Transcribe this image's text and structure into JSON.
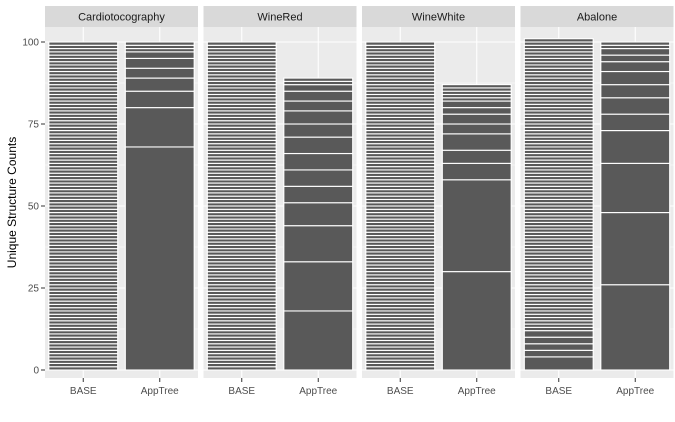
{
  "chart_data": {
    "type": "bar",
    "subtype": "stacked-facet",
    "title": "",
    "xlabel": "",
    "ylabel": "Unique Structure Counts",
    "ylim": [
      0,
      100
    ],
    "yticks": [
      0,
      25,
      50,
      75,
      100
    ],
    "categories": [
      "BASE",
      "AppTree"
    ],
    "colors": {
      "bar": "#595959",
      "separator": "#ffffff",
      "panel": "#ebebeb",
      "grid": "#ffffff",
      "strip": "#d9d9d9"
    },
    "facets": [
      {
        "name": "Cardiotocography",
        "bars": [
          {
            "category": "BASE",
            "segments": [
              1,
              1,
              1,
              1,
              1,
              1,
              1,
              1,
              1,
              1,
              1,
              1,
              1,
              1,
              1,
              1,
              1,
              1,
              1,
              1,
              1,
              1,
              1,
              1,
              1,
              1,
              1,
              1,
              1,
              1,
              1,
              1,
              1,
              1,
              1,
              1,
              1,
              1,
              1,
              1,
              1,
              1,
              1,
              1,
              1,
              1,
              1,
              1,
              1,
              1,
              1,
              1,
              1,
              1,
              1,
              1,
              1,
              1,
              1,
              1,
              1,
              1,
              1,
              1,
              1,
              1,
              1,
              1,
              1,
              1,
              1,
              1,
              1,
              1,
              1,
              1,
              1,
              1,
              1,
              1,
              1,
              1,
              1,
              1,
              1,
              1,
              1,
              1,
              1,
              1,
              1,
              1,
              1,
              1,
              1,
              1,
              1,
              1,
              1,
              1
            ]
          },
          {
            "category": "AppTree",
            "segments": [
              68,
              12,
              5,
              4,
              3,
              3,
              2,
              1,
              1,
              1
            ]
          }
        ]
      },
      {
        "name": "WineRed",
        "bars": [
          {
            "category": "BASE",
            "segments": [
              1,
              1,
              1,
              1,
              1,
              1,
              1,
              1,
              1,
              1,
              1,
              1,
              1,
              1,
              1,
              1,
              1,
              1,
              1,
              1,
              1,
              1,
              1,
              1,
              1,
              1,
              1,
              1,
              1,
              1,
              1,
              1,
              1,
              1,
              1,
              1,
              1,
              1,
              1,
              1,
              1,
              1,
              1,
              1,
              1,
              1,
              1,
              1,
              1,
              1,
              1,
              1,
              1,
              1,
              1,
              1,
              1,
              1,
              1,
              1,
              1,
              1,
              1,
              1,
              1,
              1,
              1,
              1,
              1,
              1,
              1,
              1,
              1,
              1,
              1,
              1,
              1,
              1,
              1,
              1,
              1,
              1,
              1,
              1,
              1,
              1,
              1,
              1,
              1,
              1,
              1,
              1,
              1,
              1,
              1,
              1,
              1,
              1,
              1,
              1
            ]
          },
          {
            "category": "AppTree",
            "segments": [
              18,
              15,
              11,
              7,
              5,
              5,
              5,
              5,
              4,
              4,
              3,
              3,
              2,
              1,
              1
            ]
          }
        ]
      },
      {
        "name": "WineWhite",
        "bars": [
          {
            "category": "BASE",
            "segments": [
              1,
              1,
              1,
              1,
              1,
              1,
              1,
              1,
              1,
              1,
              1,
              1,
              1,
              1,
              1,
              1,
              1,
              1,
              1,
              1,
              1,
              1,
              1,
              1,
              1,
              1,
              1,
              1,
              1,
              1,
              1,
              1,
              1,
              1,
              1,
              1,
              1,
              1,
              1,
              1,
              1,
              1,
              1,
              1,
              1,
              1,
              1,
              1,
              1,
              1,
              1,
              1,
              1,
              1,
              1,
              1,
              1,
              1,
              1,
              1,
              1,
              1,
              1,
              1,
              1,
              1,
              1,
              1,
              1,
              1,
              1,
              1,
              1,
              1,
              1,
              1,
              1,
              1,
              1,
              1,
              1,
              1,
              1,
              1,
              1,
              1,
              1,
              1,
              1,
              1,
              1,
              1,
              1,
              1,
              1,
              1,
              1,
              1,
              1,
              1
            ]
          },
          {
            "category": "AppTree",
            "segments": [
              30,
              28,
              5,
              4,
              5,
              3,
              3,
              2,
              2,
              1,
              1,
              1,
              1,
              1
            ]
          }
        ]
      },
      {
        "name": "Abalone",
        "bars": [
          {
            "category": "BASE",
            "segments": [
              4,
              2,
              2,
              2,
              2,
              1,
              1,
              1,
              1,
              1,
              1,
              1,
              1,
              1,
              1,
              1,
              1,
              1,
              1,
              1,
              1,
              1,
              1,
              1,
              1,
              1,
              1,
              1,
              1,
              1,
              1,
              1,
              1,
              1,
              1,
              1,
              1,
              1,
              1,
              1,
              1,
              1,
              1,
              1,
              1,
              1,
              1,
              1,
              1,
              1,
              1,
              1,
              1,
              1,
              1,
              1,
              1,
              1,
              1,
              1,
              1,
              1,
              1,
              1,
              1,
              1,
              1,
              1,
              1,
              1,
              1,
              1,
              1,
              1,
              1,
              1,
              1,
              1,
              1,
              1,
              1,
              1,
              1,
              1,
              1,
              1,
              1,
              1,
              1,
              1,
              1,
              1,
              1,
              1
            ]
          },
          {
            "category": "AppTree",
            "segments": [
              26,
              22,
              15,
              10,
              5,
              5,
              4,
              4,
              3,
              2,
              2,
              1,
              1
            ]
          }
        ]
      }
    ]
  }
}
